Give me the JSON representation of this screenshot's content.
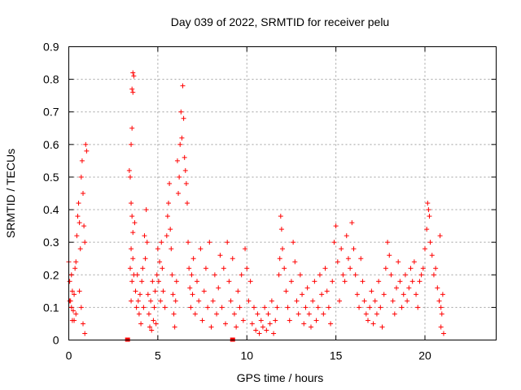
{
  "chart_data": {
    "type": "scatter",
    "title": "Day 039 of 2022, SRMTID for receiver pelu",
    "xlabel": "GPS time / hours",
    "ylabel": "SRMTID / TECUs",
    "xlim": [
      0,
      24
    ],
    "ylim": [
      0,
      0.9
    ],
    "x_ticks": [
      0,
      5,
      10,
      15,
      20
    ],
    "y_ticks": [
      0,
      0.1,
      0.2,
      0.3,
      0.4,
      0.5,
      0.6,
      0.7,
      0.8,
      0.9
    ],
    "x_tick_labels": [
      "0",
      "5",
      "10",
      "15",
      "20"
    ],
    "y_tick_labels": [
      "0",
      "0.1",
      "0.2",
      "0.3",
      "0.4",
      "0.5",
      "0.6",
      "0.7",
      "0.8",
      "0.9"
    ],
    "grid": true,
    "marker": "plus",
    "color": "#ff0000",
    "flag_color": "#ff0000",
    "flags_at_zero": [
      3.3,
      9.2
    ],
    "series": [
      {
        "name": "SRMTID",
        "points": [
          [
            0.0,
            0.24
          ],
          [
            0.05,
            0.18
          ],
          [
            0.1,
            0.12
          ],
          [
            0.15,
            0.2
          ],
          [
            0.2,
            0.15
          ],
          [
            0.25,
            0.09
          ],
          [
            0.3,
            0.06
          ],
          [
            0.35,
            0.22
          ],
          [
            0.4,
            0.24
          ],
          [
            0.45,
            0.32
          ],
          [
            0.5,
            0.38
          ],
          [
            0.55,
            0.42
          ],
          [
            0.6,
            0.36
          ],
          [
            0.65,
            0.28
          ],
          [
            0.7,
            0.5
          ],
          [
            0.75,
            0.55
          ],
          [
            0.8,
            0.45
          ],
          [
            0.85,
            0.35
          ],
          [
            0.9,
            0.3
          ],
          [
            0.95,
            0.6
          ],
          [
            1.0,
            0.58
          ],
          [
            0.6,
            0.15
          ],
          [
            0.7,
            0.1
          ],
          [
            0.8,
            0.05
          ],
          [
            0.9,
            0.02
          ],
          [
            0.2,
            0.06
          ],
          [
            0.4,
            0.08
          ],
          [
            0.3,
            0.14
          ],
          [
            0.15,
            0.1
          ],
          [
            0.05,
            0.12
          ],
          [
            3.4,
            0.52
          ],
          [
            3.45,
            0.5
          ],
          [
            3.5,
            0.6
          ],
          [
            3.55,
            0.65
          ],
          [
            3.6,
            0.82
          ],
          [
            3.65,
            0.81
          ],
          [
            3.55,
            0.77
          ],
          [
            3.6,
            0.76
          ],
          [
            3.5,
            0.42
          ],
          [
            3.55,
            0.38
          ],
          [
            3.6,
            0.33
          ],
          [
            3.5,
            0.28
          ],
          [
            3.45,
            0.22
          ],
          [
            3.5,
            0.12
          ],
          [
            3.55,
            0.18
          ],
          [
            3.6,
            0.25
          ],
          [
            3.65,
            0.2
          ],
          [
            3.7,
            0.36
          ],
          [
            3.75,
            0.15
          ],
          [
            3.8,
            0.1
          ],
          [
            3.85,
            0.2
          ],
          [
            3.9,
            0.12
          ],
          [
            3.95,
            0.08
          ],
          [
            4.0,
            0.14
          ],
          [
            4.05,
            0.05
          ],
          [
            4.1,
            0.18
          ],
          [
            4.15,
            0.22
          ],
          [
            4.2,
            0.1
          ],
          [
            4.25,
            0.32
          ],
          [
            4.3,
            0.25
          ],
          [
            4.35,
            0.4
          ],
          [
            4.4,
            0.3
          ],
          [
            4.45,
            0.14
          ],
          [
            4.5,
            0.08
          ],
          [
            4.55,
            0.04
          ],
          [
            4.6,
            0.12
          ],
          [
            4.65,
            0.03
          ],
          [
            4.7,
            0.18
          ],
          [
            4.75,
            0.06
          ],
          [
            4.8,
            0.1
          ],
          [
            4.85,
            0.15
          ],
          [
            4.9,
            0.05
          ],
          [
            4.95,
            0.2
          ],
          [
            5.0,
            0.28
          ],
          [
            5.05,
            0.18
          ],
          [
            5.1,
            0.24
          ],
          [
            5.15,
            0.12
          ],
          [
            5.2,
            0.3
          ],
          [
            5.25,
            0.22
          ],
          [
            5.3,
            0.15
          ],
          [
            5.4,
            0.1
          ],
          [
            5.5,
            0.32
          ],
          [
            5.55,
            0.38
          ],
          [
            5.6,
            0.42
          ],
          [
            5.65,
            0.48
          ],
          [
            5.7,
            0.34
          ],
          [
            5.75,
            0.28
          ],
          [
            5.8,
            0.2
          ],
          [
            5.85,
            0.14
          ],
          [
            5.9,
            0.08
          ],
          [
            5.95,
            0.04
          ],
          [
            6.0,
            0.12
          ],
          [
            6.05,
            0.18
          ],
          [
            6.1,
            0.55
          ],
          [
            6.15,
            0.45
          ],
          [
            6.2,
            0.5
          ],
          [
            6.25,
            0.6
          ],
          [
            6.3,
            0.7
          ],
          [
            6.35,
            0.62
          ],
          [
            6.4,
            0.78
          ],
          [
            6.45,
            0.68
          ],
          [
            6.5,
            0.56
          ],
          [
            6.55,
            0.52
          ],
          [
            6.6,
            0.48
          ],
          [
            6.65,
            0.42
          ],
          [
            6.7,
            0.3
          ],
          [
            6.75,
            0.22
          ],
          [
            6.8,
            0.16
          ],
          [
            6.85,
            0.1
          ],
          [
            6.9,
            0.2
          ],
          [
            6.95,
            0.14
          ],
          [
            7.0,
            0.25
          ],
          [
            7.1,
            0.08
          ],
          [
            7.2,
            0.18
          ],
          [
            7.3,
            0.12
          ],
          [
            7.4,
            0.28
          ],
          [
            7.5,
            0.06
          ],
          [
            7.6,
            0.15
          ],
          [
            7.7,
            0.22
          ],
          [
            7.8,
            0.1
          ],
          [
            7.9,
            0.3
          ],
          [
            8.0,
            0.04
          ],
          [
            8.1,
            0.12
          ],
          [
            8.2,
            0.2
          ],
          [
            8.3,
            0.08
          ],
          [
            8.4,
            0.16
          ],
          [
            8.5,
            0.26
          ],
          [
            8.6,
            0.1
          ],
          [
            8.7,
            0.22
          ],
          [
            8.8,
            0.05
          ],
          [
            8.9,
            0.3
          ],
          [
            9.0,
            0.18
          ],
          [
            9.1,
            0.12
          ],
          [
            9.2,
            0.25
          ],
          [
            9.3,
            0.08
          ],
          [
            9.4,
            0.04
          ],
          [
            9.5,
            0.15
          ],
          [
            9.6,
            0.1
          ],
          [
            9.7,
            0.2
          ],
          [
            9.8,
            0.06
          ],
          [
            9.9,
            0.28
          ],
          [
            10.0,
            0.22
          ],
          [
            10.1,
            0.12
          ],
          [
            10.2,
            0.18
          ],
          [
            10.3,
            0.05
          ],
          [
            10.4,
            0.1
          ],
          [
            10.5,
            0.03
          ],
          [
            10.6,
            0.08
          ],
          [
            10.7,
            0.02
          ],
          [
            10.8,
            0.06
          ],
          [
            10.9,
            0.04
          ],
          [
            11.0,
            0.1
          ],
          [
            11.1,
            0.03
          ],
          [
            11.2,
            0.08
          ],
          [
            11.3,
            0.05
          ],
          [
            11.4,
            0.12
          ],
          [
            11.5,
            0.02
          ],
          [
            11.6,
            0.06
          ],
          [
            11.7,
            0.1
          ],
          [
            11.8,
            0.2
          ],
          [
            11.85,
            0.25
          ],
          [
            11.9,
            0.38
          ],
          [
            11.95,
            0.34
          ],
          [
            12.0,
            0.28
          ],
          [
            12.1,
            0.22
          ],
          [
            12.2,
            0.15
          ],
          [
            12.3,
            0.1
          ],
          [
            12.4,
            0.06
          ],
          [
            12.5,
            0.18
          ],
          [
            12.6,
            0.3
          ],
          [
            12.7,
            0.24
          ],
          [
            12.8,
            0.12
          ],
          [
            12.9,
            0.08
          ],
          [
            13.0,
            0.2
          ],
          [
            13.1,
            0.14
          ],
          [
            13.2,
            0.05
          ],
          [
            13.3,
            0.1
          ],
          [
            13.4,
            0.16
          ],
          [
            13.5,
            0.08
          ],
          [
            13.6,
            0.04
          ],
          [
            13.7,
            0.12
          ],
          [
            13.8,
            0.18
          ],
          [
            13.9,
            0.06
          ],
          [
            14.0,
            0.1
          ],
          [
            14.1,
            0.2
          ],
          [
            14.2,
            0.14
          ],
          [
            14.3,
            0.08
          ],
          [
            14.4,
            0.22
          ],
          [
            14.5,
            0.15
          ],
          [
            14.6,
            0.1
          ],
          [
            14.7,
            0.05
          ],
          [
            14.8,
            0.18
          ],
          [
            14.9,
            0.3
          ],
          [
            15.0,
            0.35
          ],
          [
            15.1,
            0.24
          ],
          [
            15.2,
            0.12
          ],
          [
            15.3,
            0.28
          ],
          [
            15.4,
            0.2
          ],
          [
            15.5,
            0.18
          ],
          [
            15.6,
            0.32
          ],
          [
            15.7,
            0.25
          ],
          [
            15.8,
            0.22
          ],
          [
            15.9,
            0.36
          ],
          [
            16.0,
            0.28
          ],
          [
            16.1,
            0.2
          ],
          [
            16.2,
            0.14
          ],
          [
            16.3,
            0.1
          ],
          [
            16.4,
            0.25
          ],
          [
            16.5,
            0.18
          ],
          [
            16.6,
            0.12
          ],
          [
            16.7,
            0.08
          ],
          [
            16.8,
            0.06
          ],
          [
            16.9,
            0.1
          ],
          [
            17.0,
            0.15
          ],
          [
            17.1,
            0.05
          ],
          [
            17.2,
            0.12
          ],
          [
            17.3,
            0.08
          ],
          [
            17.4,
            0.18
          ],
          [
            17.5,
            0.1
          ],
          [
            17.6,
            0.04
          ],
          [
            17.7,
            0.14
          ],
          [
            17.8,
            0.22
          ],
          [
            17.9,
            0.3
          ],
          [
            18.0,
            0.26
          ],
          [
            18.1,
            0.2
          ],
          [
            18.2,
            0.12
          ],
          [
            18.3,
            0.08
          ],
          [
            18.4,
            0.16
          ],
          [
            18.5,
            0.24
          ],
          [
            18.6,
            0.18
          ],
          [
            18.7,
            0.1
          ],
          [
            18.8,
            0.14
          ],
          [
            18.9,
            0.2
          ],
          [
            19.0,
            0.12
          ],
          [
            19.1,
            0.16
          ],
          [
            19.2,
            0.22
          ],
          [
            19.3,
            0.18
          ],
          [
            19.4,
            0.24
          ],
          [
            19.5,
            0.14
          ],
          [
            19.6,
            0.1
          ],
          [
            19.7,
            0.18
          ],
          [
            19.8,
            0.2
          ],
          [
            19.9,
            0.22
          ],
          [
            20.0,
            0.28
          ],
          [
            20.1,
            0.34
          ],
          [
            20.15,
            0.42
          ],
          [
            20.2,
            0.4
          ],
          [
            20.25,
            0.38
          ],
          [
            20.3,
            0.3
          ],
          [
            20.4,
            0.26
          ],
          [
            20.5,
            0.2
          ],
          [
            20.6,
            0.22
          ],
          [
            20.7,
            0.16
          ],
          [
            20.8,
            0.12
          ],
          [
            20.85,
            0.32
          ],
          [
            20.9,
            0.1
          ],
          [
            20.95,
            0.08
          ],
          [
            21.0,
            0.14
          ],
          [
            21.05,
            0.02
          ],
          [
            20.9,
            0.04
          ]
        ]
      }
    ]
  }
}
